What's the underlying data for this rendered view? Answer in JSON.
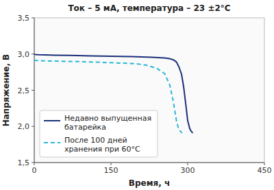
{
  "chart_data": {
    "type": "line",
    "title": "Ток – 5 мА, температура – 23 ±2°C",
    "x_label": "Время, ч",
    "y_label": "Напряжение, В",
    "xlim": [
      0,
      450
    ],
    "ylim": [
      1.5,
      3.5
    ],
    "xticks": [
      0,
      150,
      300,
      450
    ],
    "yticks": [
      {
        "value": 1.5,
        "label": "1,5"
      },
      {
        "value": 2.0,
        "label": "2,0"
      },
      {
        "value": 2.5,
        "label": "2,5"
      },
      {
        "value": 3.0,
        "label": "3,0"
      },
      {
        "value": 3.5,
        "label": "3,5"
      }
    ],
    "grid": false,
    "legend": "lower left",
    "series": [
      {
        "name": "Недавно выпущенная\nбатарейка",
        "color": "#1a2f7a",
        "line_style": "solid",
        "x": [
          0,
          1,
          3,
          8,
          20,
          40,
          70,
          110,
          150,
          190,
          230,
          255,
          265,
          272,
          278,
          283,
          288,
          292,
          296,
          300,
          304,
          307,
          310
        ],
        "values": [
          3.0,
          2.995,
          2.993,
          2.99,
          2.987,
          2.984,
          2.98,
          2.975,
          2.97,
          2.965,
          2.955,
          2.945,
          2.935,
          2.92,
          2.89,
          2.82,
          2.72,
          2.55,
          2.32,
          2.08,
          1.97,
          1.93,
          1.91
        ]
      },
      {
        "name": "После 100 дней\nхранения при 60°C",
        "color": "#29b6d8",
        "line_style": "dashed",
        "x": [
          0,
          1,
          5,
          20,
          50,
          90,
          130,
          170,
          200,
          220,
          240,
          255,
          265,
          272,
          278,
          282,
          286,
          289
        ],
        "values": [
          2.92,
          2.915,
          2.91,
          2.905,
          2.9,
          2.895,
          2.885,
          2.875,
          2.865,
          2.845,
          2.8,
          2.73,
          2.57,
          2.34,
          2.08,
          1.97,
          1.93,
          1.91
        ]
      }
    ]
  }
}
